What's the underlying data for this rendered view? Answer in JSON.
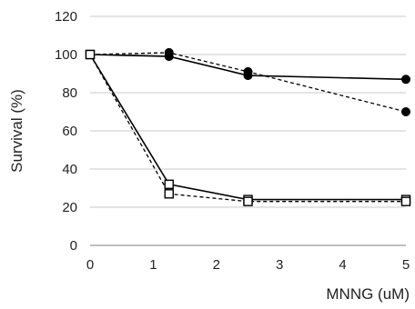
{
  "chart_data": {
    "type": "line",
    "title": "",
    "xlabel": "MNNG (uM)",
    "ylabel": "Survival (%)",
    "xlim": [
      0,
      5
    ],
    "ylim": [
      0,
      120
    ],
    "xticks": [
      0,
      1,
      2,
      3,
      4,
      5
    ],
    "yticks": [
      0,
      20,
      40,
      60,
      80,
      100,
      120
    ],
    "grid": "horizontal",
    "legend": "none",
    "series": [
      {
        "marker": "filled-circle",
        "line": "solid",
        "color": "#000000",
        "x": [
          0,
          1.25,
          2.5,
          5
        ],
        "y": [
          100,
          99,
          89,
          87
        ]
      },
      {
        "marker": "filled-circle",
        "line": "dashed",
        "color": "#000000",
        "x": [
          0,
          1.25,
          2.5,
          5
        ],
        "y": [
          100,
          101,
          91,
          70
        ]
      },
      {
        "marker": "open-square",
        "line": "solid",
        "color": "#000000",
        "x": [
          0,
          1.25,
          2.5,
          5
        ],
        "y": [
          100,
          32,
          24,
          24
        ]
      },
      {
        "marker": "open-square",
        "line": "dashed",
        "color": "#000000",
        "x": [
          0,
          1.25,
          2.5,
          5
        ],
        "y": [
          100,
          27,
          23,
          23
        ]
      }
    ]
  }
}
